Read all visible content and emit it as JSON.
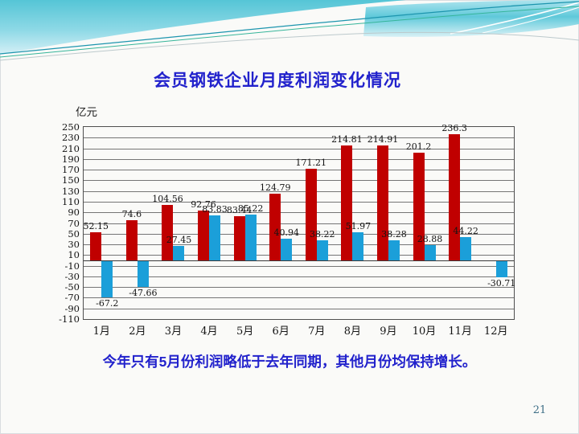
{
  "slide": {
    "title": "会员钢铁企业月度利润变化情况",
    "caption": "今年只有5月份利润略低于去年同期，其他月份均保持增长。",
    "page_number": "21",
    "title_color": "#2222cc",
    "caption_color": "#2222cc",
    "wave_accent_colors": [
      "#53c4d6",
      "#8ed9e6",
      "#1d95ae",
      "#36b59a"
    ]
  },
  "chart_data": {
    "type": "bar",
    "title": "会员钢铁企业月度利润变化情况",
    "xlabel": "",
    "ylabel": "亿元",
    "categories": [
      "1月",
      "2月",
      "3月",
      "4月",
      "5月",
      "6月",
      "7月",
      "8月",
      "9月",
      "10月",
      "11月",
      "12月"
    ],
    "series": [
      {
        "name": "red-series",
        "color": "#c00000",
        "values": [
          52.15,
          74.6,
          104.56,
          92.76,
          83.44,
          124.79,
          171.21,
          214.81,
          214.91,
          201.2,
          236.3,
          null
        ]
      },
      {
        "name": "blue-series",
        "color": "#1b9fd9",
        "values": [
          -67.2,
          -47.66,
          27.45,
          83.83,
          85.22,
          40.94,
          38.22,
          51.97,
          38.28,
          28.88,
          44.22,
          -30.71
        ]
      }
    ],
    "ylim": [
      -110,
      250
    ],
    "ytick_step": 20,
    "grid": true,
    "legend": "none",
    "data_labels": true
  }
}
